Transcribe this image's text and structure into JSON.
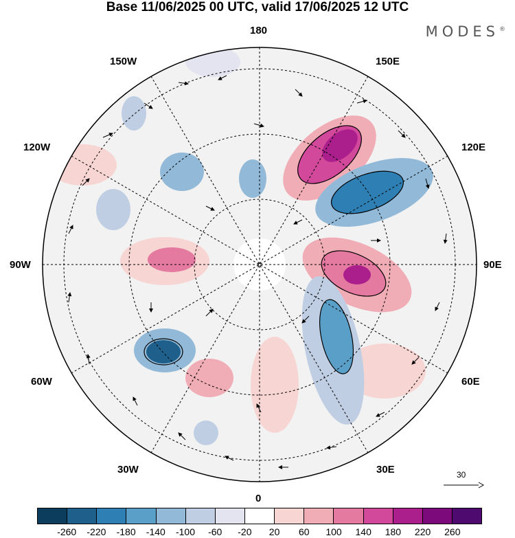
{
  "title": "Base 11/06/2025 00 UTC, valid 17/06/2025 12 UTC",
  "brand": "MODES",
  "brand_mark": "®",
  "longitude_labels": {
    "top": "180",
    "bottom": "0",
    "left": "90W",
    "right": "90E",
    "upper_left_1": "150W",
    "upper_left_2": "120W",
    "lower_left_1": "60W",
    "lower_left_2": "30W",
    "upper_right_1": "150E",
    "upper_right_2": "120E",
    "lower_right_1": "60E",
    "lower_right_2": "30E"
  },
  "vector_reference": {
    "label": "30",
    "icon": "reference-arrow-icon"
  },
  "colorbar": {
    "ticks": [
      "-260",
      "-220",
      "-180",
      "-140",
      "-100",
      "-60",
      "-20",
      "20",
      "60",
      "100",
      "140",
      "180",
      "220",
      "260"
    ],
    "colors": [
      "#0d3d5c",
      "#1f5f8b",
      "#2e7fb3",
      "#5a9fc8",
      "#92bad8",
      "#c0cee4",
      "#e4e4f0",
      "#ffffff",
      "#f7d5d3",
      "#f0adb6",
      "#e47aa0",
      "#d2489a",
      "#aa1f8c",
      "#7d0a7b",
      "#4e0a6e"
    ],
    "colors_meaning": "anomaly shading levels"
  }
}
